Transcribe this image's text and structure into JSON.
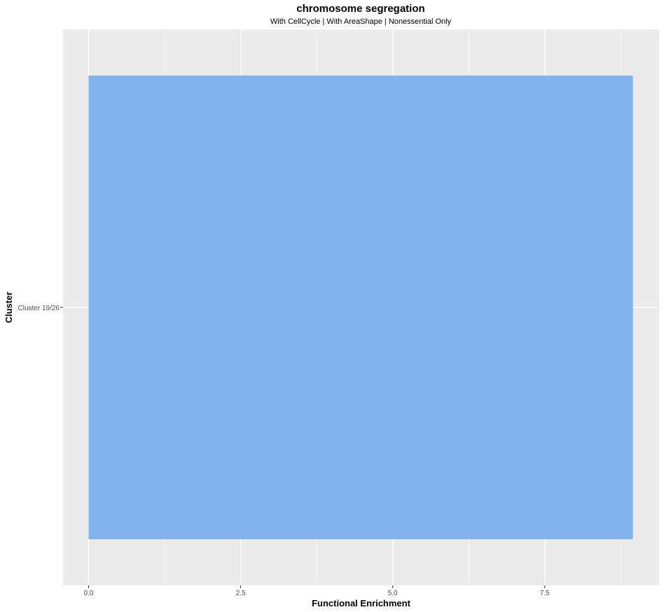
{
  "chart_data": {
    "type": "bar",
    "orientation": "horizontal",
    "title": "chromosome segregation",
    "subtitle": "With CellCycle | With AreaShape | Nonessential Only",
    "xlabel": "Functional Enrichment",
    "ylabel": "Cluster",
    "categories": [
      "Cluster 19/26"
    ],
    "values": [
      8.95
    ],
    "xlim": [
      -0.42,
      9.38
    ],
    "x_ticks": [
      {
        "value": 0,
        "label": "0.0"
      },
      {
        "value": 2.5,
        "label": "2.5"
      },
      {
        "value": 5,
        "label": "5.0"
      },
      {
        "value": 7.5,
        "label": "7.5"
      }
    ],
    "grid": true,
    "bar_color": "#80b3ef",
    "panel_color": "#ebebeb",
    "grid_color": "#ffffff"
  }
}
